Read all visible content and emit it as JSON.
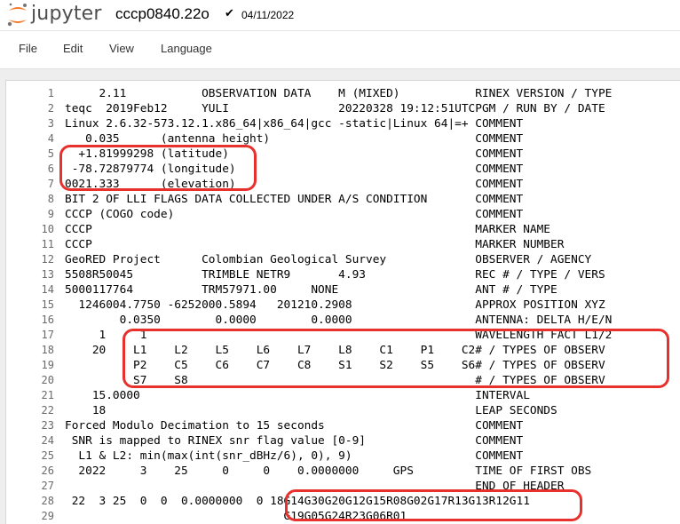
{
  "header": {
    "logo_text": "jupyter",
    "notebook_name": "cccp0840.22o",
    "save_status": "✔",
    "date": "04/11/2022"
  },
  "menu": {
    "items": [
      "File",
      "Edit",
      "View",
      "Language"
    ]
  },
  "editor": {
    "lines": [
      "     2.11           OBSERVATION DATA    M (MIXED)           RINEX VERSION / TYPE",
      "teqc  2019Feb12     YULI                20220328 19:12:51UTCPGM / RUN BY / DATE",
      "Linux 2.6.32-573.12.1.x86_64|x86_64|gcc -static|Linux 64|=+ COMMENT",
      "   0.035      (antenna height)                              COMMENT",
      "  +1.81999298 (latitude)                                    COMMENT",
      " -78.72879774 (longitude)                                   COMMENT",
      "0021.333      (elevation)                                   COMMENT",
      "BIT 2 OF LLI FLAGS DATA COLLECTED UNDER A/S CONDITION       COMMENT",
      "CCCP (COGO code)                                            COMMENT",
      "CCCP                                                        MARKER NAME",
      "CCCP                                                        MARKER NUMBER",
      "GeoRED Project      Colombian Geological Survey             OBSERVER / AGENCY",
      "5508R50045          TRIMBLE NETR9       4.93                REC # / TYPE / VERS",
      "5000117764          TRM57971.00     NONE                    ANT # / TYPE",
      "  1246004.7750 -6252000.5894   201210.2908                  APPROX POSITION XYZ",
      "        0.0350        0.0000        0.0000                  ANTENNA: DELTA H/E/N",
      "     1     1                                                WAVELENGTH FACT L1/2",
      "    20    L1    L2    L5    L6    L7    L8    C1    P1    C2# / TYPES OF OBSERV",
      "          P2    C5    C6    C7    C8    S1    S2    S5    S6# / TYPES OF OBSERV",
      "          S7    S8                                          # / TYPES OF OBSERV",
      "    15.0000                                                 INTERVAL",
      "    18                                                      LEAP SECONDS",
      "Forced Modulo Decimation to 15 seconds                      COMMENT",
      " SNR is mapped to RINEX snr flag value [0-9]                COMMENT",
      "  L1 & L2: min(max(int(snr_dBHz/6), 0), 9)                  COMMENT",
      "  2022     3    25     0     0    0.0000000     GPS         TIME OF FIRST OBS",
      "                                                            END OF HEADER",
      " 22  3 25  0  0  0.0000000  0 18G14G30G20G12G15R08G02G17R13G13R12G11",
      "                                G19G05G24R23G06R01"
    ]
  },
  "colors": {
    "annotation": "#e8302c",
    "logo_orange": "#f37726",
    "logo_gray": "#767677"
  }
}
